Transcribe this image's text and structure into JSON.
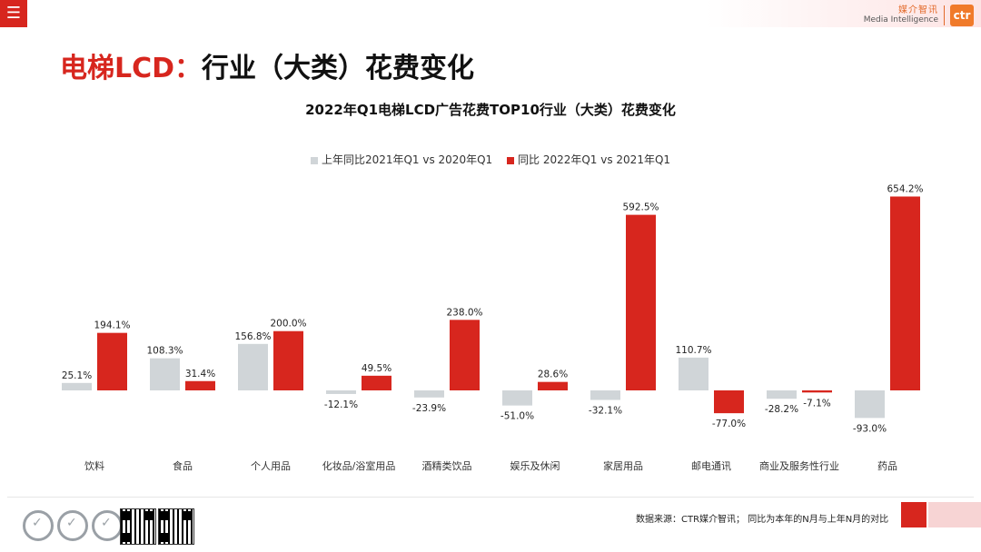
{
  "header": {
    "menu_icon": "hamburger-menu-icon",
    "logo_cn": "媒介智讯",
    "logo_en": "Media Intelligence",
    "logo_badge": "ctr"
  },
  "page_title": {
    "red": "电梯LCD：",
    "black": "行业（大类）花费变化"
  },
  "colors": {
    "accent": "#d7261e",
    "series_prev": "#d0d5d8",
    "series_curr": "#d7261e"
  },
  "chart_data": {
    "type": "bar",
    "title": "2022年Q1电梯LCD广告花费TOP10行业（大类）花费变化",
    "legend_position": "top",
    "categories": [
      "饮料",
      "食品",
      "个人用品",
      "化妆品/浴室用品",
      "酒精类饮品",
      "娱乐及休闲",
      "家居用品",
      "邮电通讯",
      "商业及服务性行业",
      "药品"
    ],
    "series": [
      {
        "name": "上年同比2021年Q1 vs 2020年Q1",
        "values": [
          25.1,
          108.3,
          156.8,
          -12.1,
          -23.9,
          -51.0,
          -32.1,
          110.7,
          -28.2,
          -93.0
        ],
        "labels": [
          "25.1%",
          "108.3%",
          "156.8%",
          "-12.1%",
          "-23.9%",
          "-51.0%",
          "-32.1%",
          "110.7%",
          "-28.2%",
          "-93.0%"
        ]
      },
      {
        "name": "同比 2022年Q1 vs 2021年Q1",
        "values": [
          194.1,
          31.4,
          200.0,
          49.5,
          238.0,
          28.6,
          592.5,
          -77.0,
          -7.1,
          654.2
        ],
        "labels": [
          "194.1%",
          "31.4%",
          "200.0%",
          "49.5%",
          "238.0%",
          "28.6%",
          "592.5%",
          "-77.0%",
          "-7.1%",
          "654.2%"
        ]
      }
    ],
    "grid": false
  },
  "footer": {
    "source": "数据来源：CTR媒介智讯；  同比为本年的N月与上年N月的对比"
  }
}
